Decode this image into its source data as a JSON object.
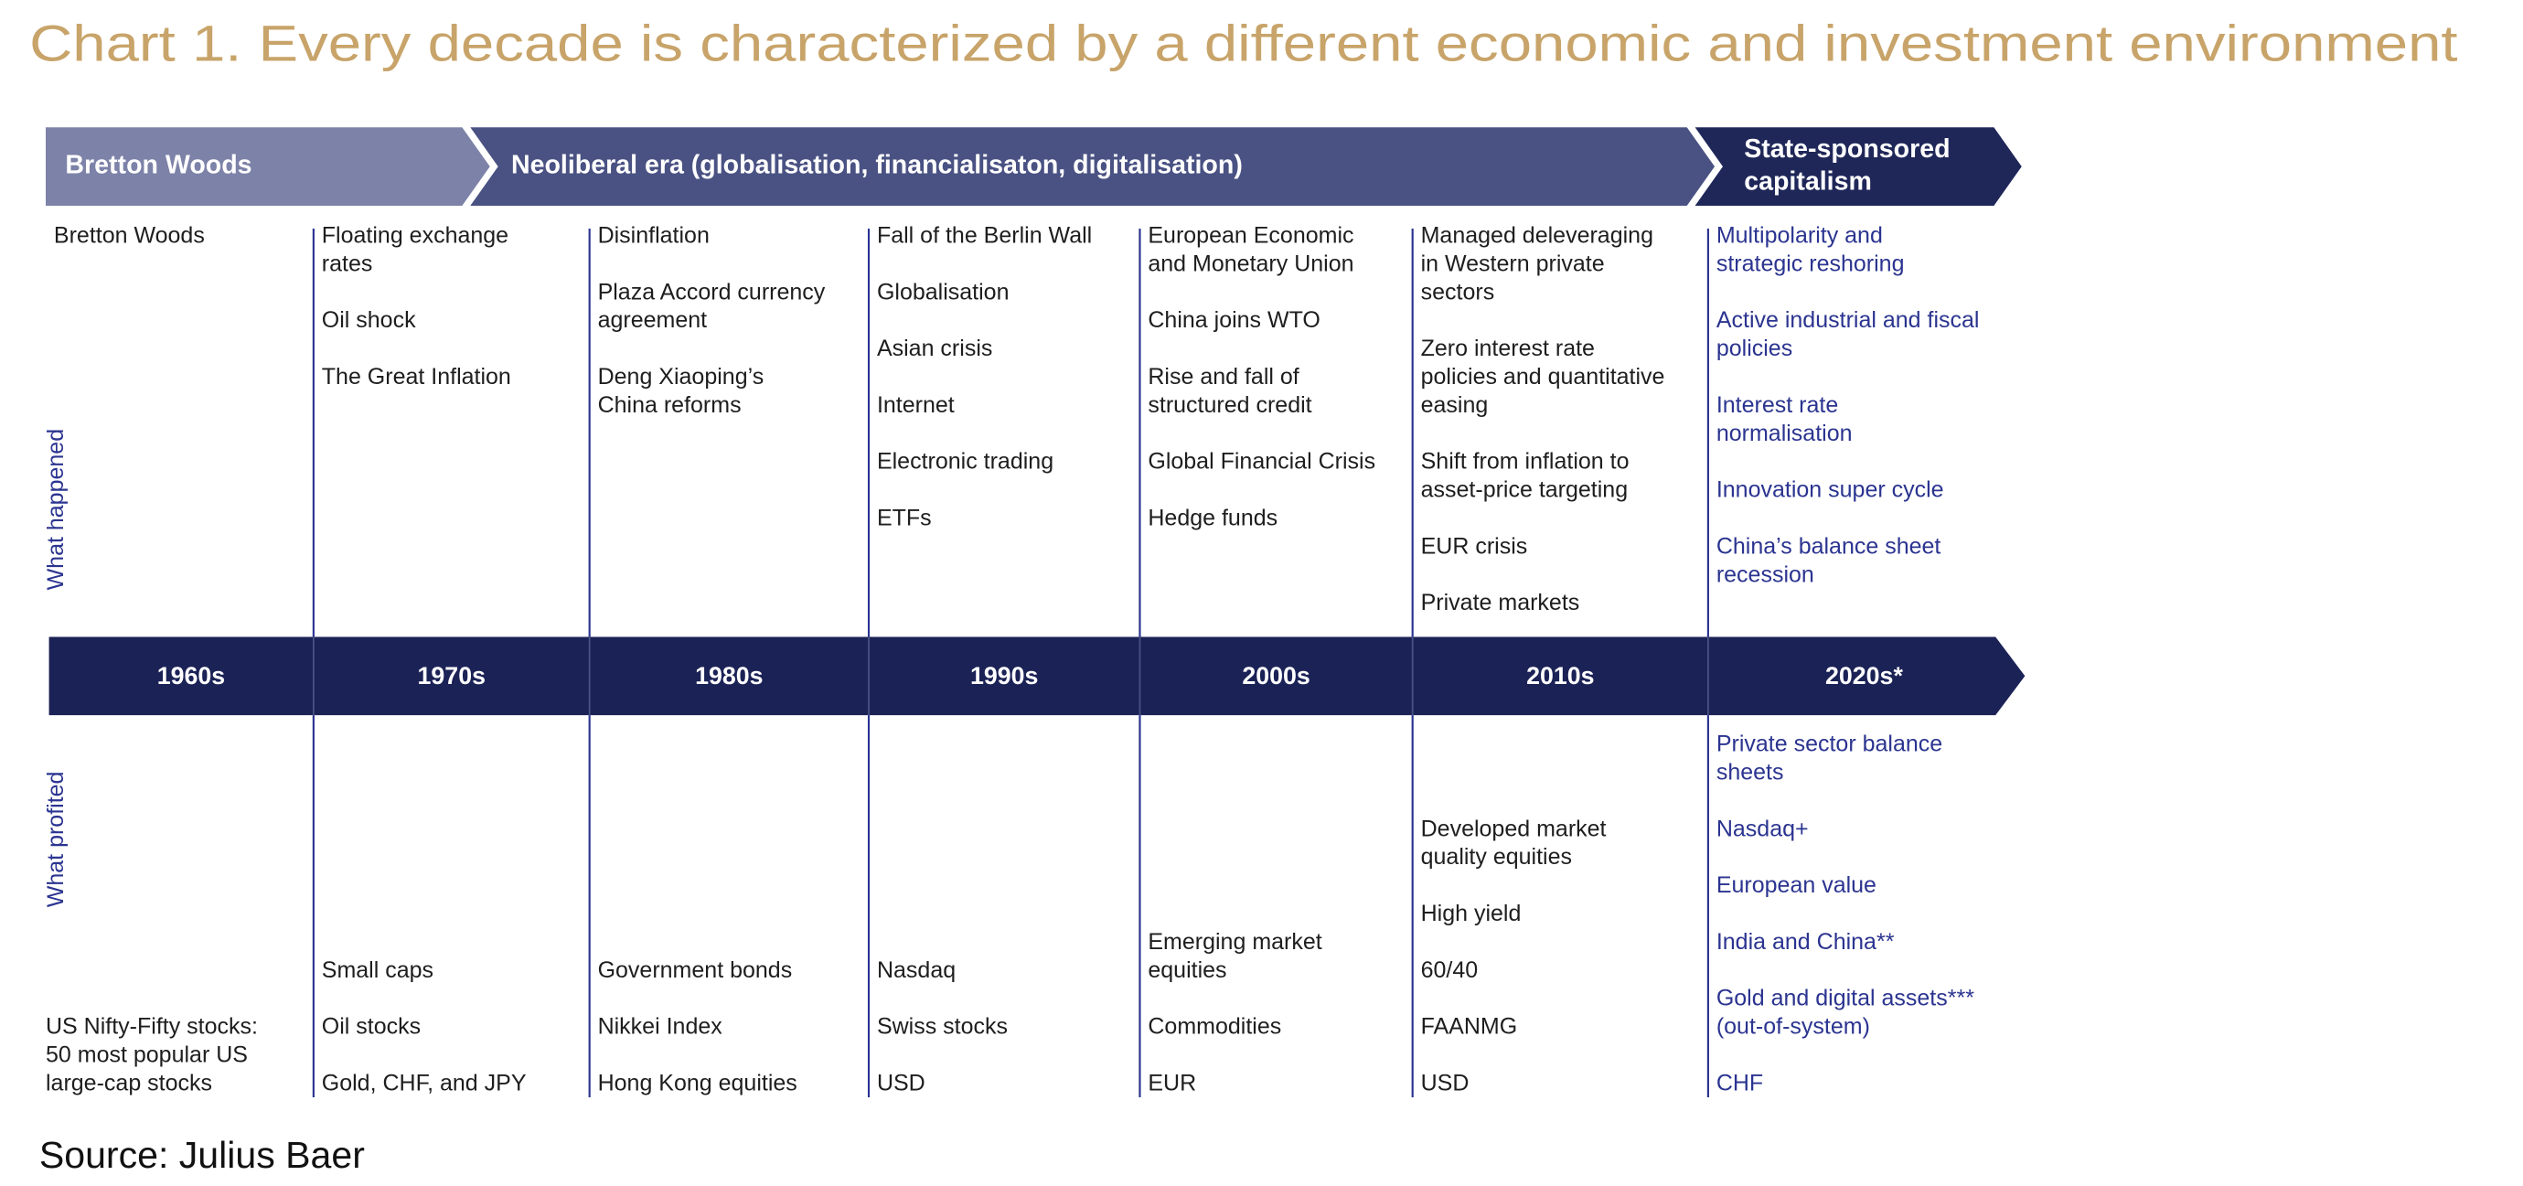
{
  "title": "Chart 1. Every decade is characterized by a different economic and investment environment",
  "eras": [
    [
      "Bretton Woods"
    ],
    [
      "Neoliberal era (globalisation, financialisaton, digitalisation)"
    ],
    [
      "State-sponsored",
      "capitalism"
    ]
  ],
  "row_labels": [
    "What happened",
    "What profited"
  ],
  "columns": [
    {
      "decade": "1960s",
      "happened": [
        [
          "Bretton Woods"
        ]
      ],
      "profited": [
        [
          "US Nifty-Fifty stocks:",
          "50 most popular US",
          "large-cap stocks"
        ]
      ]
    },
    {
      "decade": "1970s",
      "happened": [
        [
          "Floating exchange",
          "rates"
        ],
        [
          "Oil shock"
        ],
        [
          "The Great Inflation"
        ]
      ],
      "profited": [
        [
          "Small caps"
        ],
        [
          "Oil stocks"
        ],
        [
          "Gold, CHF, and JPY"
        ]
      ]
    },
    {
      "decade": "1980s",
      "happened": [
        [
          "Disinflation"
        ],
        [
          "Plaza Accord currency",
          "agreement"
        ],
        [
          "Deng Xiaoping’s",
          "China reforms"
        ]
      ],
      "profited": [
        [
          "Government bonds"
        ],
        [
          "Nikkei Index"
        ],
        [
          "Hong Kong equities"
        ]
      ]
    },
    {
      "decade": "1990s",
      "happened": [
        [
          "Fall of the Berlin Wall"
        ],
        [
          "Globalisation"
        ],
        [
          "Asian crisis"
        ],
        [
          "Internet"
        ],
        [
          "Electronic trading"
        ],
        [
          "ETFs"
        ]
      ],
      "profited": [
        [
          "Nasdaq"
        ],
        [
          "Swiss stocks"
        ],
        [
          "USD"
        ]
      ]
    },
    {
      "decade": "2000s",
      "happened": [
        [
          "European Economic",
          "and Monetary Union"
        ],
        [
          "China joins WTO"
        ],
        [
          "Rise and fall of",
          "structured credit"
        ],
        [
          "Global Financial Crisis"
        ],
        [
          "Hedge funds"
        ]
      ],
      "profited": [
        [
          "Emerging market",
          "equities"
        ],
        [
          "Commodities"
        ],
        [
          "EUR"
        ]
      ]
    },
    {
      "decade": "2010s",
      "happened": [
        [
          "Managed deleveraging",
          "in Western private",
          "sectors"
        ],
        [
          "Zero interest rate",
          "policies and quantitative",
          "easing"
        ],
        [
          "Shift from inflation to",
          "asset-price targeting"
        ],
        [
          "EUR crisis"
        ],
        [
          "Private markets"
        ]
      ],
      "profited": [
        [
          "Developed market",
          "quality equities"
        ],
        [
          "High yield"
        ],
        [
          "60/40"
        ],
        [
          "FAANMG"
        ],
        [
          "USD"
        ]
      ]
    },
    {
      "decade": "2020s*",
      "happened": [
        [
          "Multipolarity and",
          "strategic reshoring"
        ],
        [
          "Active industrial and fiscal",
          "policies"
        ],
        [
          "Interest rate",
          "normalisation"
        ],
        [
          "Innovation super cycle"
        ],
        [
          "China’s balance sheet",
          "recession"
        ]
      ],
      "profited": [
        [
          "Private sector balance",
          "sheets"
        ],
        [
          "Nasdaq+"
        ],
        [
          "European value"
        ],
        [
          "India and China**"
        ],
        [
          "Gold and digital assets***",
          "(out-of-system)"
        ],
        [
          "CHF"
        ]
      ]
    }
  ],
  "source": "Source: Julius Baer"
}
